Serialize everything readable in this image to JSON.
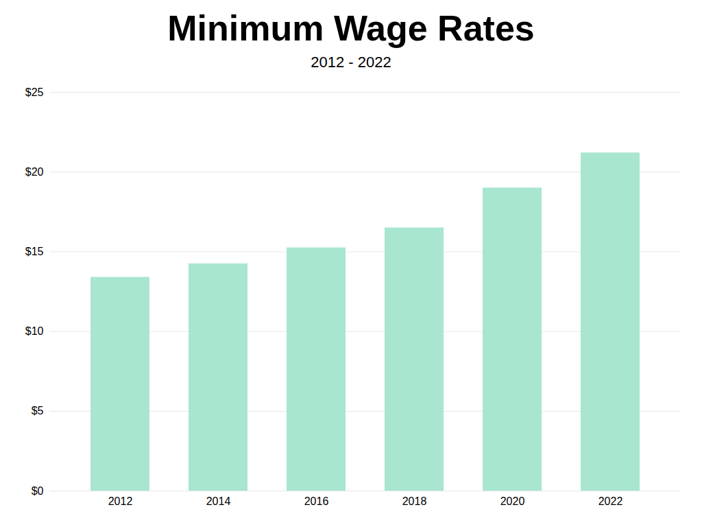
{
  "chart_data": {
    "type": "bar",
    "title": "Minimum Wage Rates",
    "subtitle": "2012 - 2022",
    "categories": [
      "2012",
      "2014",
      "2016",
      "2018",
      "2020",
      "2022"
    ],
    "values": [
      13.4,
      14.25,
      15.25,
      16.5,
      19.0,
      21.2
    ],
    "color": "#a8e6cf",
    "ylim": [
      0,
      25
    ],
    "yticks": [
      {
        "value": 0,
        "label": "$0"
      },
      {
        "value": 5,
        "label": "$5"
      },
      {
        "value": 10,
        "label": "$10"
      },
      {
        "value": 15,
        "label": "$15"
      },
      {
        "value": 20,
        "label": "$20"
      },
      {
        "value": 25,
        "label": "$25"
      }
    ],
    "grid": true
  }
}
